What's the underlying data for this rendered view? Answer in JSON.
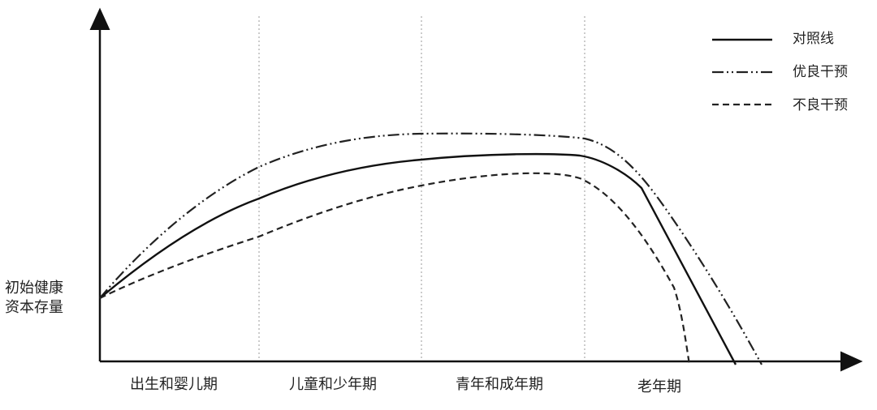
{
  "diagram": {
    "y_axis_label_lines": [
      "初始健康",
      "资本存量"
    ],
    "stages": [
      "出生和婴儿期",
      "儿童和少年期",
      "青年和成年期",
      "老年期"
    ],
    "legend": [
      {
        "label": "对照线",
        "style": "solid"
      },
      {
        "label": "优良干预",
        "style": "dash-dot-dot"
      },
      {
        "label": "不良干预",
        "style": "dashed"
      }
    ]
  }
}
